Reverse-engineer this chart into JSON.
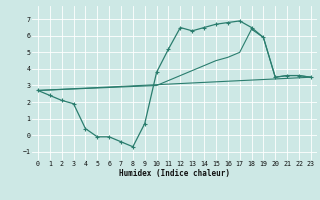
{
  "xlabel": "Humidex (Indice chaleur)",
  "xlim": [
    -0.5,
    23.5
  ],
  "ylim": [
    -1.5,
    7.8
  ],
  "yticks": [
    -1,
    0,
    1,
    2,
    3,
    4,
    5,
    6,
    7
  ],
  "xticks": [
    0,
    1,
    2,
    3,
    4,
    5,
    6,
    7,
    8,
    9,
    10,
    11,
    12,
    13,
    14,
    15,
    16,
    17,
    18,
    19,
    20,
    21,
    22,
    23
  ],
  "bg_color": "#cde8e5",
  "grid_color": "#b8d8d8",
  "line_color": "#2a7d6e",
  "line1_x": [
    0,
    1,
    2,
    3,
    4,
    5,
    6,
    7,
    8,
    9,
    10,
    11,
    12,
    13,
    14,
    15,
    16,
    17,
    18,
    19,
    20,
    21,
    22,
    23
  ],
  "line1_y": [
    2.7,
    2.4,
    2.1,
    1.9,
    0.4,
    -0.1,
    -0.1,
    -0.4,
    -0.7,
    0.7,
    3.8,
    5.2,
    6.5,
    6.3,
    6.5,
    6.7,
    6.8,
    6.9,
    6.5,
    5.9,
    3.5,
    3.6,
    3.6,
    3.5
  ],
  "line2_x": [
    0,
    23
  ],
  "line2_y": [
    2.7,
    3.5
  ],
  "line3_x": [
    0,
    10,
    11,
    12,
    13,
    14,
    15,
    16,
    17,
    18,
    19,
    20,
    21,
    22,
    23
  ],
  "line3_y": [
    2.7,
    3.0,
    3.3,
    3.6,
    3.9,
    4.2,
    4.5,
    4.7,
    5.0,
    6.4,
    5.9,
    3.5,
    3.6,
    3.6,
    3.5
  ]
}
